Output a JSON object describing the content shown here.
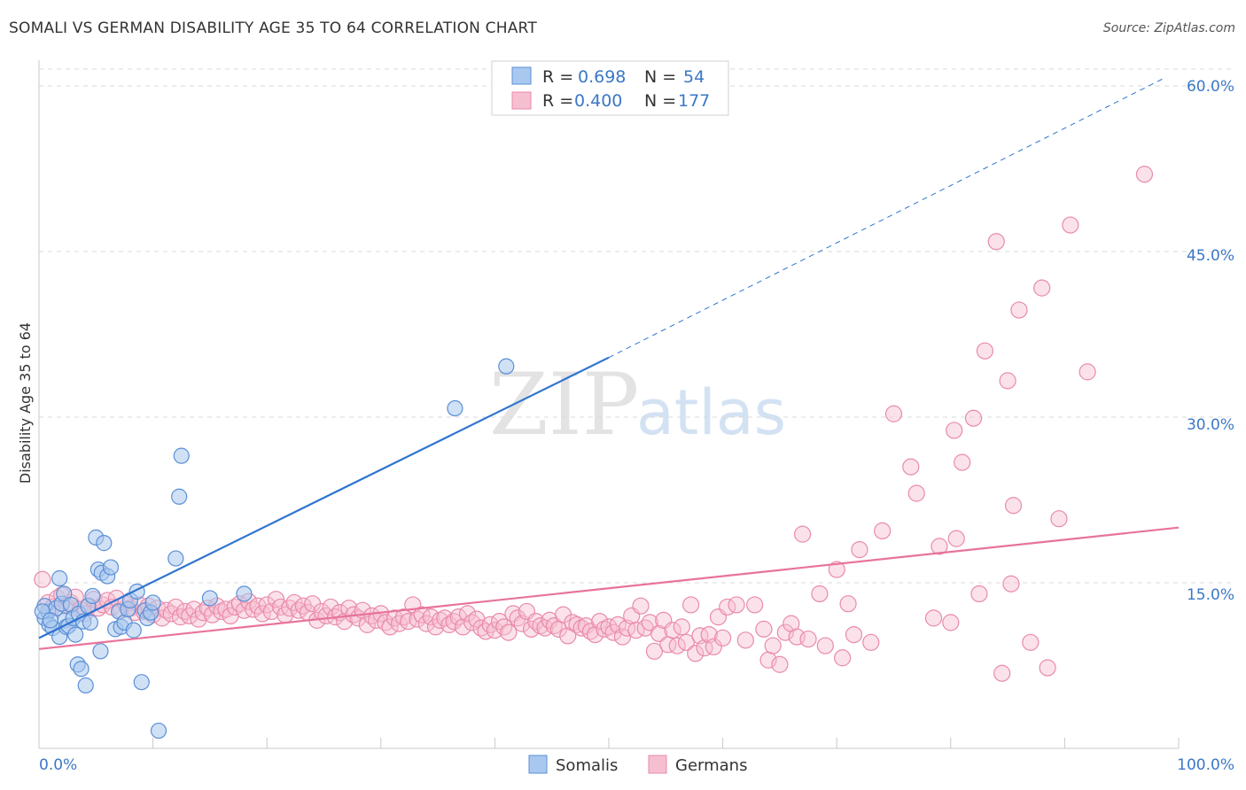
{
  "title": "SOMALI VS GERMAN DISABILITY AGE 35 TO 64 CORRELATION CHART",
  "source": "Source: ZipAtlas.com",
  "watermark": {
    "part1": "ZIP",
    "part2": "atlas"
  },
  "colors": {
    "somali_fill": "#a9c8ef",
    "somali_stroke": "#5a8fd6",
    "somali_line": "#2f74d0",
    "german_fill": "#f6bfd0",
    "german_stroke": "#e98aaa",
    "german_line": "#e8739b",
    "accent_text": "#3b78c6",
    "grid": "#d9d9d9"
  },
  "legend": {
    "rows": [
      {
        "r_label": "R =",
        "r_value": "0.698",
        "n_label": "N =",
        "n_value": "54"
      },
      {
        "r_label": "R =",
        "r_value": "0.400",
        "n_label": "N =",
        "n_value": "177"
      }
    ]
  },
  "bottom_legend": [
    "Somalis",
    "Germans"
  ],
  "chart_data": {
    "type": "scatter",
    "title": "SOMALI VS GERMAN DISABILITY AGE 35 TO 64 CORRELATION CHART",
    "xlabel": "",
    "ylabel": "Disability Age 35 to 64",
    "xlim": [
      0,
      100
    ],
    "ylim": [
      0,
      60
    ],
    "x_tick_labels": [
      "0.0%",
      "100.0%"
    ],
    "y_ticks": [
      15,
      30,
      45,
      60
    ],
    "y_tick_labels": [
      "15.0%",
      "30.0%",
      "45.0%",
      "60.0%"
    ],
    "grid": true,
    "legend_position": "top-center",
    "series": [
      {
        "name": "Somalis",
        "r": 0.698,
        "n": 54,
        "trend": {
          "x0": 0,
          "y0": 10.0,
          "x1": 50,
          "y1": 35.4,
          "dashed_to_x": 100,
          "dashed_to_y": 60.8
        },
        "points": [
          [
            0.5,
            11.8
          ],
          [
            0.8,
            12.4
          ],
          [
            0.5,
            12.9
          ],
          [
            0.9,
            11.2
          ],
          [
            1.2,
            10.9
          ],
          [
            1.5,
            12.7
          ],
          [
            1.8,
            10.1
          ],
          [
            2.0,
            13.1
          ],
          [
            1.8,
            15.4
          ],
          [
            2.2,
            14.0
          ],
          [
            2.3,
            11.6
          ],
          [
            2.4,
            11.0
          ],
          [
            2.6,
            11.1
          ],
          [
            2.8,
            13.0
          ],
          [
            3.0,
            11.8
          ],
          [
            3.2,
            10.3
          ],
          [
            3.4,
            7.6
          ],
          [
            3.5,
            12.2
          ],
          [
            3.7,
            7.2
          ],
          [
            3.9,
            11.5
          ],
          [
            4.1,
            5.7
          ],
          [
            4.3,
            12.9
          ],
          [
            4.5,
            11.4
          ],
          [
            4.7,
            13.8
          ],
          [
            5.0,
            19.1
          ],
          [
            5.2,
            16.2
          ],
          [
            5.4,
            8.8
          ],
          [
            5.5,
            15.9
          ],
          [
            5.7,
            18.6
          ],
          [
            6.0,
            15.6
          ],
          [
            6.3,
            16.4
          ],
          [
            6.7,
            10.8
          ],
          [
            7.0,
            12.4
          ],
          [
            7.2,
            11.0
          ],
          [
            7.5,
            11.4
          ],
          [
            7.8,
            12.6
          ],
          [
            8.0,
            13.4
          ],
          [
            8.3,
            10.7
          ],
          [
            8.6,
            14.2
          ],
          [
            9.0,
            6.0
          ],
          [
            9.3,
            12.5
          ],
          [
            9.5,
            11.8
          ],
          [
            9.8,
            12.3
          ],
          [
            10.0,
            13.2
          ],
          [
            10.5,
            1.6
          ],
          [
            12.0,
            17.2
          ],
          [
            12.3,
            22.8
          ],
          [
            12.5,
            26.5
          ],
          [
            15.0,
            13.6
          ],
          [
            18.0,
            14.0
          ],
          [
            36.5,
            30.8
          ],
          [
            41.0,
            34.6
          ],
          [
            0.3,
            12.4
          ],
          [
            1.0,
            11.6
          ]
        ]
      },
      {
        "name": "Germans",
        "r": 0.4,
        "n": 177,
        "trend": {
          "x0": 0,
          "y0": 9.0,
          "x1": 100,
          "y1": 20.0
        },
        "points": [
          [
            0.3,
            15.3
          ],
          [
            0.8,
            13.2
          ],
          [
            1.2,
            12.8
          ],
          [
            1.6,
            13.6
          ],
          [
            2.0,
            13.9
          ],
          [
            2.4,
            12.9
          ],
          [
            2.8,
            13.2
          ],
          [
            3.2,
            13.7
          ],
          [
            3.6,
            12.6
          ],
          [
            4.0,
            12.2
          ],
          [
            4.4,
            12.9
          ],
          [
            4.8,
            13.5
          ],
          [
            5.2,
            12.7
          ],
          [
            5.6,
            13.0
          ],
          [
            6.0,
            13.4
          ],
          [
            6.4,
            12.8
          ],
          [
            6.8,
            13.6
          ],
          [
            7.2,
            12.5
          ],
          [
            7.6,
            13.1
          ],
          [
            8.0,
            12.7
          ],
          [
            8.4,
            12.3
          ],
          [
            8.8,
            13.0
          ],
          [
            9.2,
            12.4
          ],
          [
            9.6,
            12.9
          ],
          [
            10.0,
            12.1
          ],
          [
            10.4,
            12.7
          ],
          [
            10.8,
            11.8
          ],
          [
            11.2,
            12.5
          ],
          [
            11.6,
            12.2
          ],
          [
            12.0,
            12.8
          ],
          [
            12.4,
            11.9
          ],
          [
            12.8,
            12.4
          ],
          [
            13.2,
            12.0
          ],
          [
            13.6,
            12.6
          ],
          [
            14.0,
            11.7
          ],
          [
            14.4,
            12.3
          ],
          [
            14.8,
            12.7
          ],
          [
            15.2,
            12.1
          ],
          [
            15.6,
            12.9
          ],
          [
            16.0,
            12.4
          ],
          [
            16.4,
            12.6
          ],
          [
            16.8,
            12.0
          ],
          [
            17.2,
            12.8
          ],
          [
            17.6,
            13.1
          ],
          [
            18.0,
            12.5
          ],
          [
            18.4,
            13.3
          ],
          [
            18.8,
            12.6
          ],
          [
            19.2,
            12.9
          ],
          [
            19.6,
            12.2
          ],
          [
            20.0,
            13.0
          ],
          [
            20.4,
            12.4
          ],
          [
            20.8,
            13.5
          ],
          [
            21.2,
            12.8
          ],
          [
            21.6,
            12.1
          ],
          [
            22.0,
            12.7
          ],
          [
            22.4,
            13.2
          ],
          [
            22.8,
            12.5
          ],
          [
            23.2,
            12.9
          ],
          [
            23.6,
            12.3
          ],
          [
            24.0,
            13.1
          ],
          [
            24.4,
            11.6
          ],
          [
            24.8,
            12.4
          ],
          [
            25.2,
            12.0
          ],
          [
            25.6,
            12.8
          ],
          [
            26.0,
            11.9
          ],
          [
            26.4,
            12.3
          ],
          [
            26.8,
            11.5
          ],
          [
            27.2,
            12.7
          ],
          [
            27.6,
            12.1
          ],
          [
            28.0,
            11.8
          ],
          [
            28.4,
            12.5
          ],
          [
            28.8,
            11.2
          ],
          [
            29.2,
            12.0
          ],
          [
            29.6,
            11.6
          ],
          [
            30.0,
            12.2
          ],
          [
            30.4,
            11.4
          ],
          [
            30.8,
            11.0
          ],
          [
            31.2,
            11.8
          ],
          [
            31.6,
            11.3
          ],
          [
            32.0,
            11.9
          ],
          [
            32.4,
            11.5
          ],
          [
            32.8,
            13.0
          ],
          [
            33.2,
            11.7
          ],
          [
            33.6,
            12.1
          ],
          [
            34.0,
            11.3
          ],
          [
            34.4,
            11.9
          ],
          [
            34.8,
            11.0
          ],
          [
            35.2,
            11.6
          ],
          [
            35.6,
            11.8
          ],
          [
            36.0,
            11.2
          ],
          [
            36.4,
            11.5
          ],
          [
            36.8,
            11.9
          ],
          [
            37.2,
            11.0
          ],
          [
            37.6,
            12.2
          ],
          [
            38.0,
            11.4
          ],
          [
            38.4,
            11.7
          ],
          [
            38.8,
            10.9
          ],
          [
            39.2,
            10.6
          ],
          [
            39.6,
            11.2
          ],
          [
            40.0,
            10.7
          ],
          [
            40.4,
            11.5
          ],
          [
            40.8,
            11.0
          ],
          [
            41.2,
            10.5
          ],
          [
            41.6,
            12.2
          ],
          [
            42.0,
            11.8
          ],
          [
            42.4,
            11.3
          ],
          [
            42.8,
            12.4
          ],
          [
            43.2,
            10.8
          ],
          [
            43.6,
            11.5
          ],
          [
            44.0,
            11.1
          ],
          [
            44.4,
            10.9
          ],
          [
            44.8,
            11.6
          ],
          [
            45.2,
            11.1
          ],
          [
            45.6,
            10.8
          ],
          [
            46.0,
            12.1
          ],
          [
            46.4,
            10.2
          ],
          [
            46.8,
            11.4
          ],
          [
            47.2,
            11.2
          ],
          [
            47.6,
            10.9
          ],
          [
            48.0,
            11.1
          ],
          [
            48.4,
            10.6
          ],
          [
            48.8,
            10.3
          ],
          [
            49.2,
            11.5
          ],
          [
            49.6,
            10.8
          ],
          [
            50.0,
            11.0
          ],
          [
            50.4,
            10.5
          ],
          [
            50.8,
            11.2
          ],
          [
            51.2,
            10.1
          ],
          [
            51.6,
            10.9
          ],
          [
            52.0,
            12.0
          ],
          [
            52.4,
            10.7
          ],
          [
            52.8,
            12.9
          ],
          [
            53.2,
            10.9
          ],
          [
            53.6,
            11.4
          ],
          [
            54.0,
            8.8
          ],
          [
            54.4,
            10.4
          ],
          [
            54.8,
            11.6
          ],
          [
            55.2,
            9.4
          ],
          [
            55.6,
            10.7
          ],
          [
            56.0,
            9.3
          ],
          [
            56.4,
            11.0
          ],
          [
            56.8,
            9.6
          ],
          [
            57.2,
            13.0
          ],
          [
            57.6,
            8.6
          ],
          [
            58.0,
            10.2
          ],
          [
            58.4,
            9.1
          ],
          [
            58.8,
            10.3
          ],
          [
            59.2,
            9.2
          ],
          [
            59.6,
            11.9
          ],
          [
            60.0,
            10.0
          ],
          [
            60.4,
            12.8
          ],
          [
            61.2,
            13.0
          ],
          [
            62.0,
            9.8
          ],
          [
            62.8,
            13.0
          ],
          [
            63.6,
            10.8
          ],
          [
            64.0,
            8.0
          ],
          [
            64.4,
            9.3
          ],
          [
            65.0,
            7.6
          ],
          [
            65.5,
            10.5
          ],
          [
            66.0,
            11.3
          ],
          [
            66.5,
            10.1
          ],
          [
            67.0,
            19.4
          ],
          [
            67.5,
            9.9
          ],
          [
            68.5,
            14.0
          ],
          [
            69.0,
            9.3
          ],
          [
            70.0,
            16.2
          ],
          [
            70.5,
            8.2
          ],
          [
            71.0,
            13.1
          ],
          [
            71.5,
            10.3
          ],
          [
            72.0,
            18.0
          ],
          [
            73.0,
            9.6
          ],
          [
            74.0,
            19.7
          ],
          [
            75.0,
            30.3
          ],
          [
            76.5,
            25.5
          ],
          [
            77.0,
            23.1
          ],
          [
            78.5,
            11.8
          ],
          [
            79.0,
            18.3
          ],
          [
            80.0,
            11.4
          ],
          [
            80.5,
            19.0
          ],
          [
            81.0,
            25.9
          ],
          [
            82.0,
            29.9
          ],
          [
            83.0,
            36.0
          ],
          [
            84.0,
            45.9
          ],
          [
            85.5,
            22.0
          ],
          [
            86.0,
            39.7
          ],
          [
            88.0,
            41.7
          ],
          [
            89.5,
            20.8
          ],
          [
            90.5,
            47.4
          ],
          [
            92.0,
            34.1
          ],
          [
            97.0,
            52.0
          ],
          [
            80.3,
            28.8
          ],
          [
            82.5,
            14.0
          ],
          [
            85.0,
            33.3
          ],
          [
            87.0,
            9.6
          ],
          [
            88.5,
            7.3
          ],
          [
            84.5,
            6.8
          ],
          [
            85.3,
            14.9
          ]
        ]
      }
    ]
  }
}
